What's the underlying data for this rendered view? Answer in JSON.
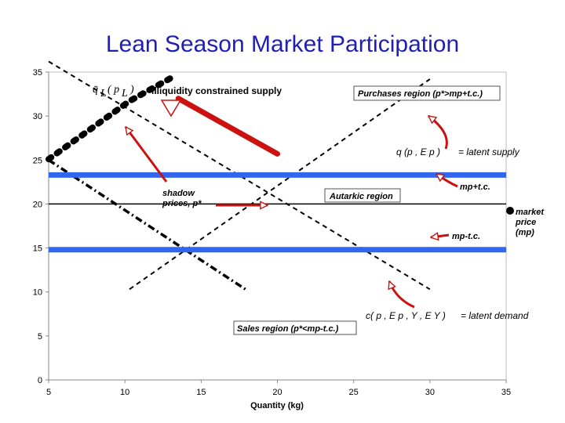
{
  "slide_title": "Lean Season Market Participation",
  "chart_data": {
    "type": "line",
    "title": "Lean Season Market Participation",
    "xlabel": "Quantity (kg)",
    "ylabel": "",
    "xlim": [
      5,
      35
    ],
    "ylim": [
      0,
      35
    ],
    "x_ticks": [
      5,
      10,
      15,
      20,
      25,
      30,
      35
    ],
    "y_ticks": [
      0,
      5,
      10,
      15,
      20,
      25,
      30,
      35
    ],
    "grid": false,
    "series": [
      {
        "name": "",
        "style": "dashed",
        "color": "#000000",
        "points": [
          [
            5,
            36.2
          ],
          [
            30,
            10.3
          ]
        ]
      },
      {
        "name": "",
        "style": "dashed",
        "color": "#000000",
        "points": [
          [
            10.3,
            10.3
          ],
          [
            30,
            34.2
          ]
        ]
      },
      {
        "name": "",
        "style": "dash-dot",
        "color": "#000000",
        "points": [
          [
            5,
            25
          ],
          [
            18,
            10.2
          ]
        ]
      },
      {
        "name": "",
        "style": "dotted-thick",
        "color": "#000000",
        "points": [
          [
            5,
            25.1
          ],
          [
            10.3,
            31.7
          ],
          [
            13.2,
            34.5
          ]
        ]
      },
      {
        "name": "",
        "style": "solid-thick",
        "color": "#cc1111",
        "points": [
          [
            13.5,
            32
          ],
          [
            20,
            25.7
          ]
        ]
      },
      {
        "name": "mp+t.c.",
        "style": "band",
        "color": "#3366ee",
        "points": [
          [
            5,
            23.3
          ],
          [
            35,
            23.3
          ]
        ]
      },
      {
        "name": "market price (mp)",
        "style": "solid",
        "color": "#000000",
        "points": [
          [
            5,
            20
          ],
          [
            35,
            20
          ]
        ]
      },
      {
        "name": "mp-t.c.",
        "style": "band",
        "color": "#3366ee",
        "points": [
          [
            5,
            14.8
          ],
          [
            35,
            14.8
          ]
        ]
      }
    ],
    "annotations": {
      "liquidity_label": "=illiquidity constrained supply",
      "q_symbol": "q̄",
      "q_sub": "L",
      "q_args": "( p",
      "q_args_sub": "L",
      "q_close": ")",
      "purchases_region": "Purchases region (p*>mp+t.c.)",
      "latent_supply_lhs": "q (p , E p   )",
      "latent_supply_rhs": "= latent supply",
      "mp_plus_tc": "mp+t.c.",
      "autarkic_region": "Autarkic region",
      "shadow_prices_line1": "shadow",
      "shadow_prices_line2": "prices, p*",
      "market_price_line1": "market",
      "market_price_line2": "price",
      "market_price_line3": "(mp)",
      "mp_minus_tc": "mp-t.c.",
      "latent_demand_lhs": "c( p , E p   , Y , E Y   )",
      "latent_demand_rhs": "= latent demand",
      "sales_region": "Sales region (p*<mp-t.c.)"
    }
  },
  "colors": {
    "title": "#1f1fb4",
    "blue_band": "#3366ee",
    "red": "#cc1111",
    "axis": "#000000"
  }
}
